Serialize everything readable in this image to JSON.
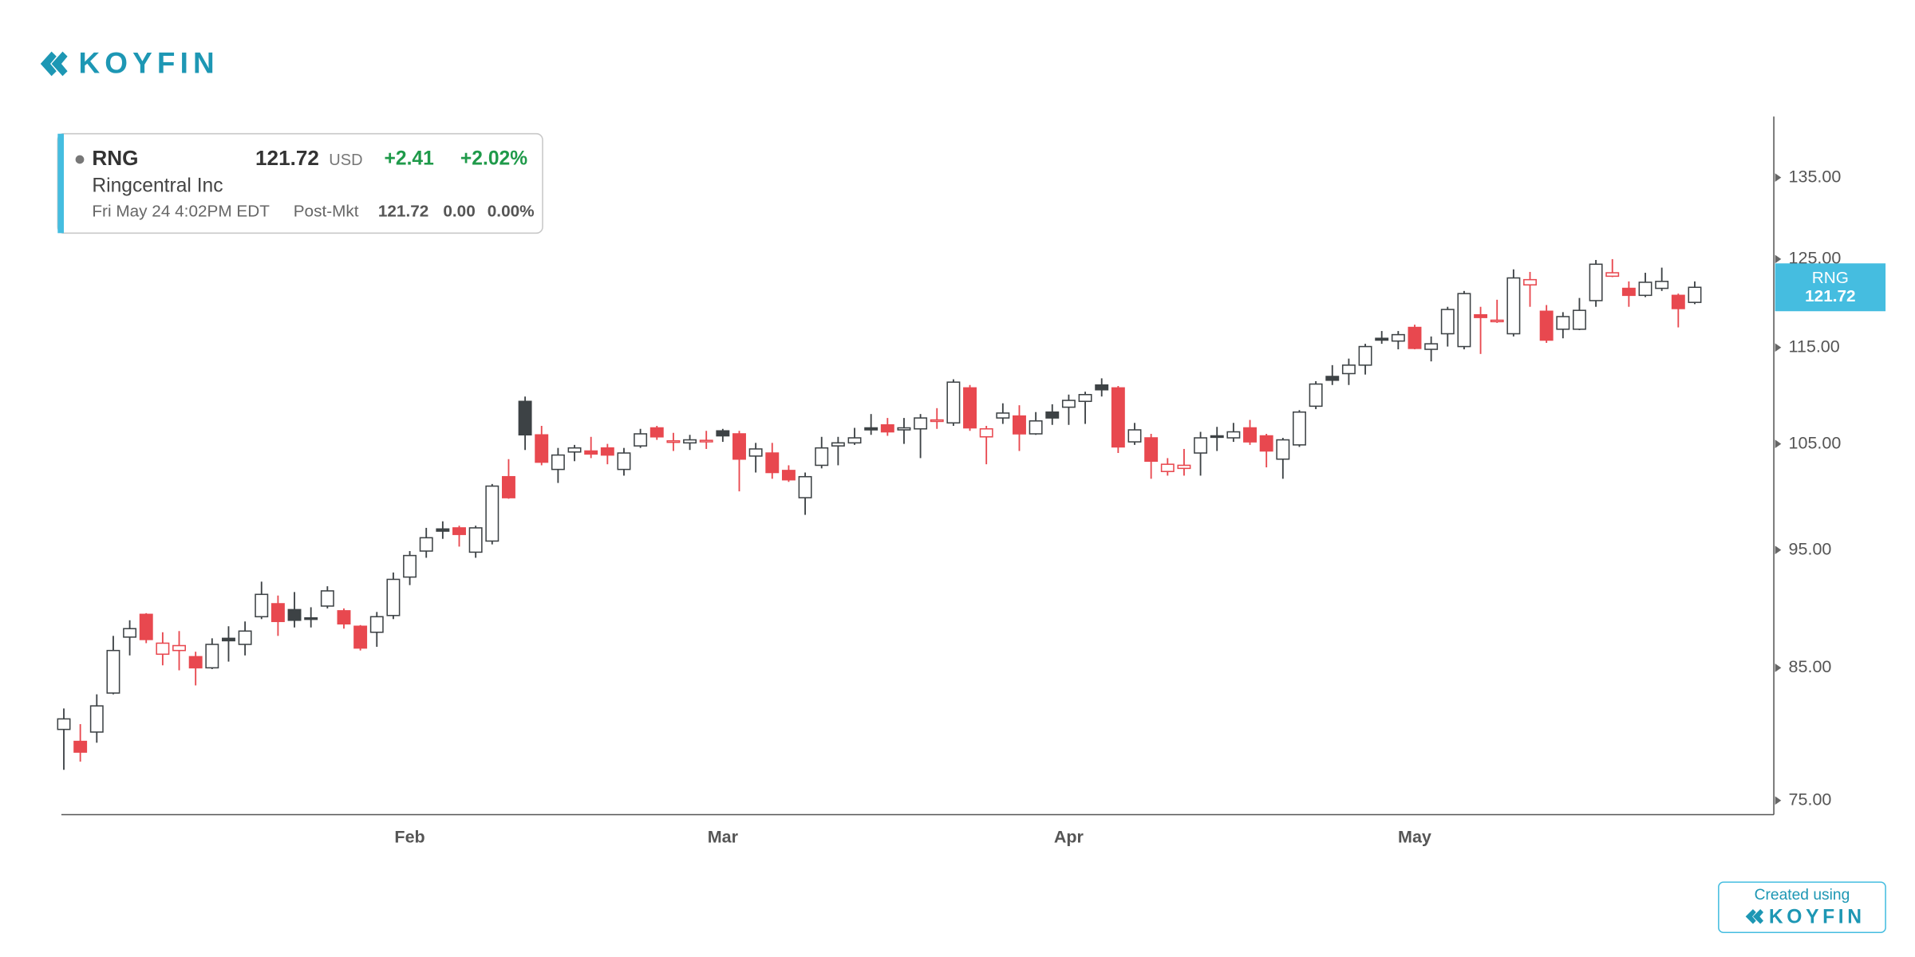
{
  "logo": {
    "text": "KOYFIN"
  },
  "quote": {
    "ticker": "RNG",
    "price": "121.72",
    "currency": "USD",
    "change": "+2.41",
    "change_pct": "+2.02%",
    "company": "Ringcentral Inc",
    "timestamp": "Fri May 24 4:02PM EDT",
    "session": "Post-Mkt",
    "session_price": "121.72",
    "session_change": "0.00",
    "session_change_pct": "0.00%"
  },
  "footer": {
    "caption": "Created using",
    "brand": "KOYFIN"
  },
  "chart_data": {
    "type": "candlestick",
    "log_scale": true,
    "colors": {
      "up": "#3d4245",
      "down": "#e8484f",
      "hollow": "#ffffff",
      "tag": "#45bde0"
    },
    "ylim": [
      74,
      143
    ],
    "yticks": [
      {
        "value": 75,
        "label": "75.00"
      },
      {
        "value": 85,
        "label": "85.00"
      },
      {
        "value": 95,
        "label": "95.00"
      },
      {
        "value": 105,
        "label": "105.00"
      },
      {
        "value": 115,
        "label": "115.00"
      },
      {
        "value": 125,
        "label": "125.00"
      },
      {
        "value": 135,
        "label": "135.00"
      }
    ],
    "categories": [
      null,
      null,
      null,
      null,
      null,
      null,
      null,
      null,
      null,
      null,
      null,
      null,
      null,
      null,
      null,
      null,
      null,
      null,
      null,
      null,
      null,
      "Feb",
      null,
      null,
      null,
      null,
      null,
      null,
      null,
      null,
      null,
      null,
      null,
      null,
      null,
      null,
      null,
      null,
      null,
      null,
      "Mar",
      null,
      null,
      null,
      null,
      null,
      null,
      null,
      null,
      null,
      null,
      null,
      null,
      null,
      null,
      null,
      null,
      null,
      null,
      null,
      null,
      "Apr",
      null,
      null,
      null,
      null,
      null,
      null,
      null,
      null,
      null,
      null,
      null,
      null,
      null,
      null,
      null,
      null,
      null,
      null,
      null,
      null,
      "May",
      null,
      null,
      null,
      null,
      null,
      null,
      null,
      null,
      null,
      null,
      null,
      null,
      null,
      null,
      null,
      null,
      null
    ],
    "series": [
      {
        "name": "RNG",
        "open": [
          80.2,
          79.3,
          80.0,
          83.0,
          87.5,
          89.4,
          86.1,
          86.4,
          85.9,
          85.0,
          87.4,
          86.9,
          89.2,
          90.3,
          89.8,
          89.1,
          90.1,
          89.7,
          88.4,
          87.9,
          89.3,
          92.6,
          94.9,
          96.9,
          97.0,
          94.8,
          95.8,
          101.8,
          109.3,
          105.9,
          102.5,
          104.2,
          104.3,
          104.6,
          102.5,
          104.8,
          106.6,
          105.2,
          105.1,
          105.3,
          106.3,
          106.0,
          103.8,
          104.1,
          102.4,
          99.8,
          102.9,
          104.8,
          105.1,
          106.6,
          106.9,
          106.4,
          106.5,
          107.3,
          107.1,
          110.7,
          105.7,
          107.6,
          107.8,
          106.0,
          108.2,
          108.7,
          109.3,
          111.0,
          110.7,
          105.2,
          105.6,
          102.3,
          102.6,
          104.1,
          105.8,
          105.6,
          106.6,
          105.8,
          103.5,
          104.9,
          108.8,
          111.9,
          112.2,
          113.1,
          116.0,
          115.7,
          117.2,
          114.8,
          116.5,
          115.1,
          118.6,
          117.9,
          116.5,
          122.0,
          119.0,
          117.0,
          117.0,
          120.2,
          123.0,
          121.6,
          120.8,
          121.6,
          120.8,
          120.0
        ],
        "high": [
          81.8,
          80.6,
          82.9,
          87.6,
          88.9,
          89.5,
          87.9,
          88.0,
          86.3,
          87.4,
          88.4,
          88.8,
          92.2,
          91.0,
          91.3,
          90.0,
          91.8,
          89.9,
          88.5,
          89.6,
          93.0,
          94.9,
          97.0,
          97.6,
          97.2,
          97.2,
          101.1,
          103.5,
          109.8,
          106.8,
          104.6,
          104.9,
          105.7,
          105.0,
          104.6,
          106.5,
          106.8,
          106.1,
          105.9,
          106.3,
          106.5,
          106.3,
          105.1,
          105.1,
          102.9,
          102.2,
          105.7,
          105.7,
          106.6,
          108.0,
          107.6,
          107.6,
          108.0,
          108.6,
          111.6,
          111.0,
          106.8,
          109.1,
          108.9,
          108.2,
          109.0,
          110.0,
          110.3,
          111.7,
          110.9,
          107.1,
          106.0,
          103.6,
          104.5,
          106.2,
          106.7,
          107.1,
          107.4,
          106.0,
          105.6,
          108.4,
          111.4,
          113.1,
          113.8,
          115.4,
          116.8,
          116.8,
          117.5,
          116.2,
          119.5,
          121.3,
          119.5,
          120.3,
          123.8,
          123.5,
          119.7,
          118.9,
          120.5,
          124.9,
          125.0,
          122.4,
          123.4,
          124.0,
          121.0,
          122.4
        ],
        "low": [
          77.2,
          77.8,
          79.2,
          82.9,
          86.0,
          87.0,
          85.2,
          84.8,
          83.6,
          84.9,
          85.5,
          86.0,
          89.0,
          87.6,
          88.3,
          88.3,
          89.9,
          88.2,
          86.4,
          86.7,
          89.0,
          91.9,
          94.3,
          96.0,
          95.3,
          94.3,
          95.5,
          99.7,
          104.4,
          102.9,
          101.2,
          103.3,
          103.6,
          103.0,
          101.9,
          104.6,
          105.4,
          104.3,
          104.4,
          104.5,
          105.2,
          100.4,
          102.2,
          101.6,
          101.3,
          98.2,
          102.6,
          102.9,
          104.9,
          105.9,
          105.8,
          105.0,
          103.6,
          106.5,
          106.8,
          106.3,
          103.0,
          107.0,
          104.3,
          105.9,
          106.9,
          106.9,
          107.0,
          109.8,
          104.1,
          104.9,
          101.6,
          101.9,
          101.9,
          101.9,
          104.3,
          105.2,
          104.9,
          102.7,
          101.6,
          104.7,
          108.5,
          111.0,
          111.0,
          112.1,
          115.4,
          114.8,
          114.8,
          113.5,
          115.1,
          114.8,
          114.3,
          117.7,
          116.2,
          119.5,
          115.5,
          116.0,
          116.9,
          119.5,
          122.9,
          119.5,
          120.6,
          121.3,
          117.2,
          119.8
        ],
        "close": [
          81.0,
          78.5,
          82.0,
          86.4,
          88.2,
          87.3,
          87.0,
          86.8,
          85.0,
          86.9,
          87.2,
          88.0,
          91.1,
          88.8,
          88.9,
          89.0,
          91.4,
          88.6,
          86.6,
          89.2,
          92.4,
          94.5,
          96.1,
          96.7,
          96.4,
          97.0,
          100.9,
          99.8,
          105.9,
          103.2,
          103.9,
          104.6,
          104.0,
          103.9,
          104.1,
          106.0,
          105.7,
          105.3,
          105.4,
          105.35,
          105.8,
          103.5,
          104.5,
          102.2,
          101.5,
          101.8,
          104.6,
          105.1,
          105.6,
          106.4,
          106.2,
          106.6,
          107.6,
          107.4,
          111.3,
          106.6,
          106.5,
          108.1,
          106.0,
          107.3,
          107.6,
          109.4,
          110.0,
          110.5,
          104.7,
          106.4,
          103.3,
          103.0,
          102.9,
          105.6,
          105.7,
          106.2,
          105.2,
          104.3,
          105.4,
          108.2,
          111.1,
          111.5,
          113.1,
          115.1,
          115.8,
          116.4,
          114.9,
          115.4,
          119.2,
          121.0,
          118.3,
          118.0,
          122.8,
          122.6,
          115.8,
          118.4,
          119.1,
          124.4,
          123.4,
          120.8,
          122.3,
          122.4,
          119.3,
          121.72
        ]
      }
    ]
  }
}
